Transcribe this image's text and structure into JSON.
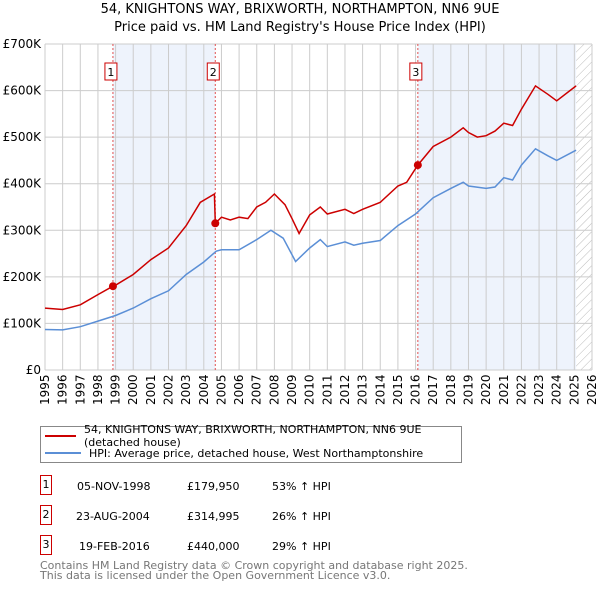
{
  "chart_data": {
    "type": "line",
    "title": "54, KNIGHTONS WAY, BRIXWORTH, NORTHAMPTON, NN6 9UE",
    "subtitle": "Price paid vs. HM Land Registry's House Price Index (HPI)",
    "xlim": [
      1995,
      2026
    ],
    "ylim": [
      0,
      700000
    ],
    "yticks": [
      {
        "v": 0,
        "label": "£0"
      },
      {
        "v": 100000,
        "label": "£100K"
      },
      {
        "v": 200000,
        "label": "£200K"
      },
      {
        "v": 300000,
        "label": "£300K"
      },
      {
        "v": 400000,
        "label": "£400K"
      },
      {
        "v": 500000,
        "label": "£500K"
      },
      {
        "v": 600000,
        "label": "£600K"
      },
      {
        "v": 700000,
        "label": "£700K"
      }
    ],
    "xticks": [
      "1995",
      "1996",
      "1997",
      "1998",
      "1999",
      "2000",
      "2001",
      "2002",
      "2003",
      "2004",
      "2005",
      "2006",
      "2007",
      "2008",
      "2009",
      "2010",
      "2011",
      "2012",
      "2013",
      "2014",
      "2015",
      "2016",
      "2017",
      "2018",
      "2019",
      "2020",
      "2021",
      "2022",
      "2023",
      "2024",
      "2025",
      "2026"
    ],
    "grid": true,
    "series": [
      {
        "name": "54, KNIGHTONS WAY, BRIXWORTH, NORTHAMPTON, NN6 9UE (detached house)",
        "color": "#cc0000",
        "x": [
          1995,
          1996,
          1997,
          1998,
          1998.85,
          1999,
          2000,
          2001,
          2002,
          2003,
          2003.8,
          2004.6,
          2004.65,
          2005,
          2005.5,
          2006,
          2006.5,
          2007,
          2007.5,
          2008,
          2008.6,
          2009,
          2009.4,
          2010,
          2010.6,
          2011,
          2012,
          2012.5,
          2013,
          2014,
          2015,
          2015.5,
          2016.13,
          2017,
          2018,
          2018.7,
          2019,
          2019.5,
          2020,
          2020.5,
          2021,
          2021.5,
          2022,
          2022.8,
          2023.5,
          2024,
          2025.1
        ],
        "y": [
          133000,
          130000,
          140000,
          162000,
          179950,
          182000,
          205000,
          237000,
          262000,
          310000,
          360000,
          378000,
          314995,
          328000,
          322000,
          328000,
          325000,
          350000,
          360000,
          378000,
          355000,
          325000,
          293000,
          333000,
          350000,
          335000,
          345000,
          336000,
          345000,
          360000,
          395000,
          403000,
          440000,
          480000,
          500000,
          520000,
          510000,
          500000,
          503000,
          513000,
          530000,
          525000,
          560000,
          610000,
          592000,
          578000,
          610000
        ]
      },
      {
        "name": "HPI: Average price, detached house, West Northamptonshire",
        "color": "#5b8fd6",
        "x": [
          1995,
          1996,
          1997,
          1998,
          1999,
          2000,
          2001,
          2002,
          2003,
          2004,
          2004.7,
          2005,
          2006,
          2007,
          2007.8,
          2008.5,
          2009.2,
          2010,
          2010.6,
          2011,
          2012,
          2012.5,
          2013,
          2014,
          2015,
          2016,
          2016.2,
          2017,
          2018,
          2018.7,
          2019,
          2020,
          2020.5,
          2021,
          2021.5,
          2022,
          2022.8,
          2023.5,
          2024,
          2025.1
        ],
        "y": [
          87000,
          86000,
          93000,
          105000,
          117000,
          133000,
          153000,
          170000,
          205000,
          232000,
          255000,
          258000,
          258000,
          280000,
          300000,
          283000,
          233000,
          262000,
          280000,
          265000,
          275000,
          268000,
          272000,
          278000,
          310000,
          335000,
          342000,
          370000,
          390000,
          403000,
          395000,
          390000,
          393000,
          413000,
          408000,
          440000,
          475000,
          460000,
          450000,
          472000
        ]
      }
    ],
    "sales": [
      {
        "n": "1",
        "x": 1998.85,
        "y": 179950
      },
      {
        "n": "2",
        "x": 2004.65,
        "y": 314995
      },
      {
        "n": "3",
        "x": 2016.13,
        "y": 440000
      }
    ],
    "shaded": [
      [
        1998.85,
        2004.65
      ],
      [
        2016.13,
        2025.1
      ]
    ],
    "hatched_from": 2025.1
  },
  "legend": {
    "red": "54, KNIGHTONS WAY, BRIXWORTH, NORTHAMPTON, NN6 9UE (detached house)",
    "blue": "HPI: Average price, detached house, West Northamptonshire"
  },
  "transactions": [
    {
      "n": "1",
      "date": "05-NOV-1998",
      "price": "£179,950",
      "hpi": "53% ↑ HPI"
    },
    {
      "n": "2",
      "date": "23-AUG-2004",
      "price": "£314,995",
      "hpi": "26% ↑ HPI"
    },
    {
      "n": "3",
      "date": "19-FEB-2016",
      "price": "£440,000",
      "hpi": "29% ↑ HPI"
    }
  ],
  "footer": [
    "Contains HM Land Registry data © Crown copyright and database right 2025.",
    "This data is licensed under the Open Government Licence v3.0."
  ]
}
